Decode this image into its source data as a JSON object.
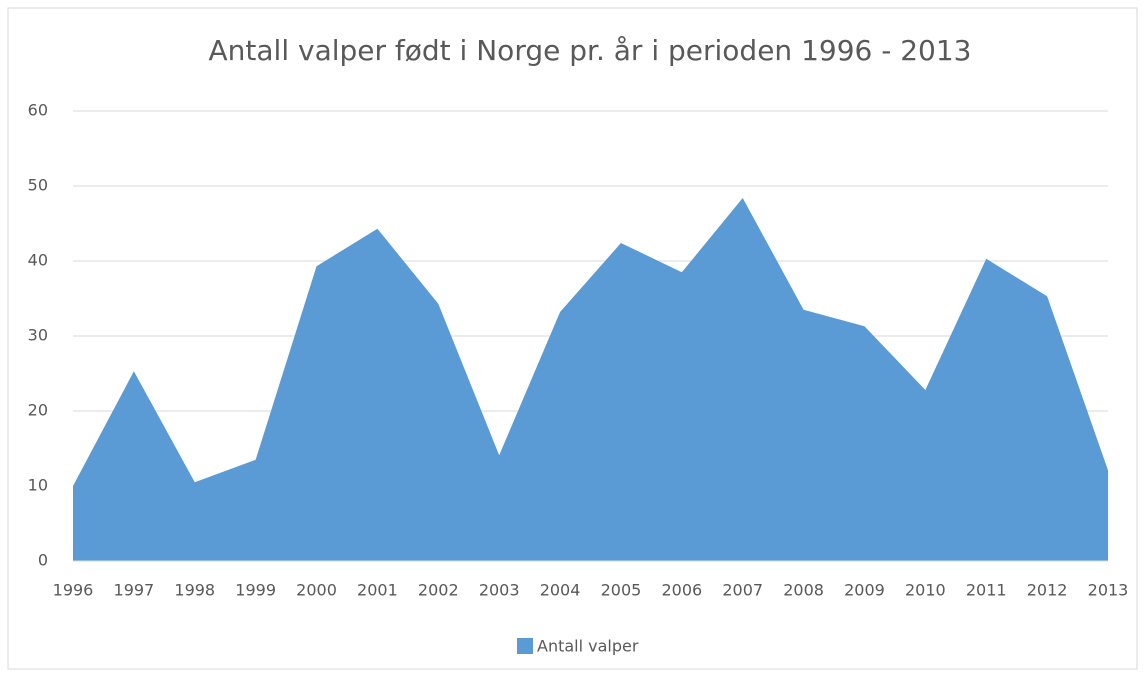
{
  "chart_data": {
    "type": "area",
    "title": "Antall valper født i Norge pr. år i perioden 1996 - 2013",
    "categories": [
      "1996",
      "1997",
      "1998",
      "1999",
      "2000",
      "2001",
      "2002",
      "2003",
      "2004",
      "2005",
      "2006",
      "2007",
      "2008",
      "2009",
      "2010",
      "2011",
      "2012",
      "2013"
    ],
    "series": [
      {
        "name": "Antall valper",
        "color": "#5b9bd5",
        "values": [
          10,
          25.3,
          10.5,
          13.5,
          39.3,
          44.3,
          34.3,
          14.1,
          33.2,
          42.4,
          38.5,
          48.4,
          33.5,
          31.3,
          22.8,
          40.3,
          35.3,
          12.1
        ]
      }
    ],
    "ylim": [
      0,
      60
    ],
    "yticks": [
      0,
      10,
      20,
      30,
      40,
      50,
      60
    ],
    "grid": true,
    "legend": "bottom"
  }
}
